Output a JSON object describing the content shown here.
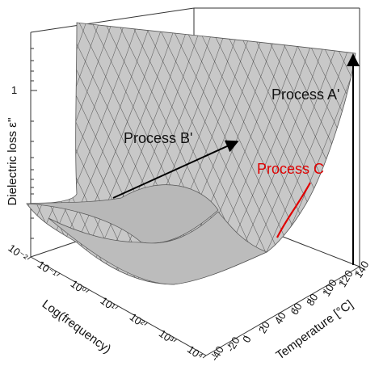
{
  "chart_data": {
    "type": "surface",
    "title": "",
    "zlabel": "Dielectric loss ε''",
    "xlabel": "Log(frequency)",
    "ylabel": "Temperature [°C]",
    "z_scale": "log",
    "z_ticks": [
      "1"
    ],
    "frequency_ticks": [
      "10⁻²",
      "10⁻¹",
      "10⁰",
      "10¹",
      "10²",
      "10³",
      "10⁴"
    ],
    "frequency_range": [
      0.01,
      10000
    ],
    "temperature_ticks": [
      "-40",
      "-20",
      "0",
      "20",
      "40",
      "60",
      "80",
      "100",
      "120",
      "140"
    ],
    "temperature_range": [
      -40,
      140
    ],
    "surface_color": "#c8c8c8",
    "mesh_color": "#4a4a4a",
    "annotations": [
      {
        "label": "Process A'",
        "color": "#000000",
        "arrow": "temperature-edge, upward"
      },
      {
        "label": "Process B'",
        "color": "#000000",
        "arrow": "along frequency, diagonal"
      },
      {
        "label": "Process C",
        "color": "#e00000",
        "arrow": "red segment on surface"
      }
    ],
    "grid": false
  }
}
